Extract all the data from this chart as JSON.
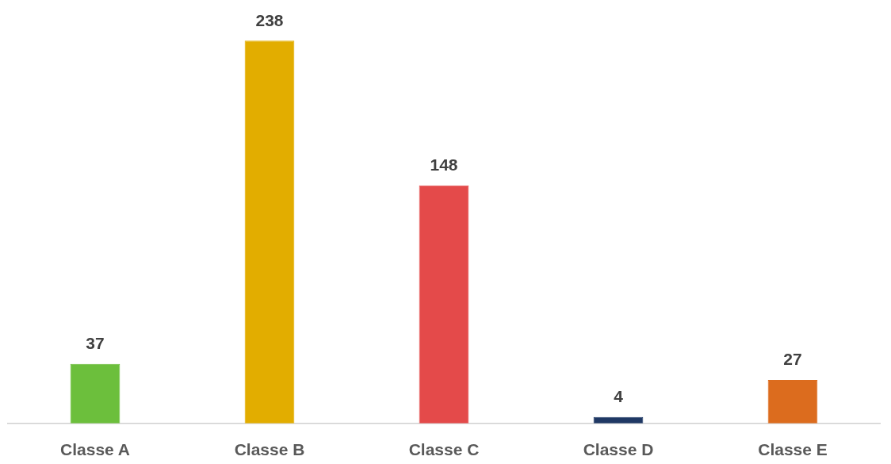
{
  "chart_data": {
    "type": "bar",
    "categories": [
      "Classe A",
      "Classe B",
      "Classe C",
      "Classe D",
      "Classe E"
    ],
    "values": [
      37,
      238,
      148,
      4,
      27
    ],
    "colors": [
      "#6cbf3c",
      "#e2ad00",
      "#e44a4a",
      "#1f3864",
      "#dc6c1e"
    ],
    "tick_labels": "x",
    "data_labels": true,
    "grid": false,
    "legend": false
  }
}
